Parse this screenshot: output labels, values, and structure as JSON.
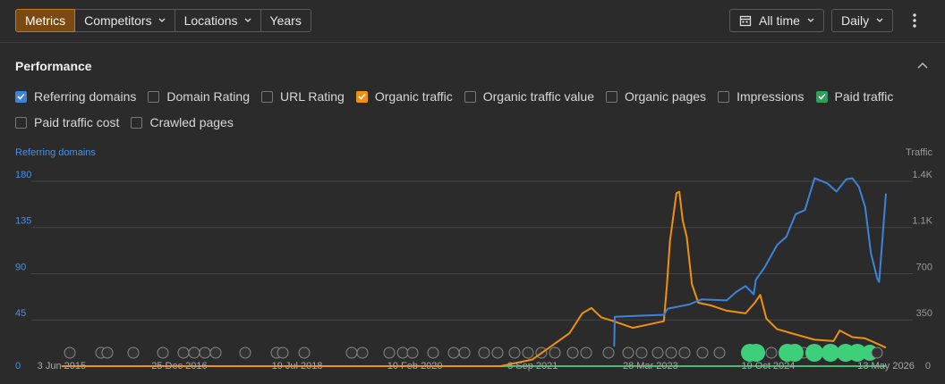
{
  "toolbar": {
    "tabs": [
      "Metrics",
      "Competitors",
      "Locations",
      "Years"
    ],
    "period": "All time",
    "interval": "Daily"
  },
  "section": {
    "title": "Performance",
    "checkboxes": [
      {
        "label": "Referring domains",
        "checked": true,
        "color": "#3d84d8"
      },
      {
        "label": "Domain Rating",
        "checked": false
      },
      {
        "label": "URL Rating",
        "checked": false
      },
      {
        "label": "Organic traffic",
        "checked": true,
        "color": "#f0900f"
      },
      {
        "label": "Organic traffic value",
        "checked": false
      },
      {
        "label": "Organic pages",
        "checked": false
      },
      {
        "label": "Impressions",
        "checked": false
      },
      {
        "label": "Paid traffic",
        "checked": true,
        "color": "#2f9e5c"
      },
      {
        "label": "Paid traffic cost",
        "checked": false
      },
      {
        "label": "Crawled pages",
        "checked": false
      }
    ]
  },
  "chart_data": {
    "type": "line",
    "y_label": "Referring domains",
    "y2_label": "Traffic",
    "xlim": [
      "2015-01-07",
      "2026-09-20"
    ],
    "xticks": [
      {
        "value": "2015-06-03",
        "label": "3 Jun 2015"
      },
      {
        "value": "2016-12-25",
        "label": "25 Dec 2016"
      },
      {
        "value": "2018-07-19",
        "label": "19 Jul 2018"
      },
      {
        "value": "2020-02-10",
        "label": "10 Feb 2020"
      },
      {
        "value": "2021-09-03",
        "label": "3 Sep 2021"
      },
      {
        "value": "2023-03-28",
        "label": "28 Mar 2023"
      },
      {
        "value": "2024-10-19",
        "label": "19 Oct 2024"
      },
      {
        "value": "2026-05-13",
        "label": "13 May 2026"
      }
    ],
    "ylim": [
      0,
      180
    ],
    "yticks": [
      0,
      45,
      90,
      135,
      180
    ],
    "y2lim": [
      0,
      1400
    ],
    "y2ticks": [
      0,
      350,
      700,
      {
        "value": 1050,
        "label": "1.1K"
      },
      {
        "value": 1400,
        "label": "1.4K"
      }
    ],
    "grid": true,
    "series": [
      {
        "name": "Paid traffic",
        "color": "#3fbf74",
        "axis": "y2",
        "x": [
          "2015-06-03",
          "2026-05-13"
        ],
        "values": [
          0,
          0
        ]
      },
      {
        "name": "Organic traffic",
        "color": "#f0900f",
        "axis": "y2",
        "x": [
          "2015-06-03",
          "2021-04-01",
          "2021-09-01",
          "2021-12-01",
          "2022-03-01",
          "2022-05-01",
          "2022-06-15",
          "2022-08-01",
          "2022-10-01",
          "2023-01-01",
          "2023-04-01",
          "2023-06-01",
          "2023-06-15",
          "2023-07-01",
          "2023-08-01",
          "2023-08-15",
          "2023-09-01",
          "2023-09-20",
          "2023-10-15",
          "2023-11-15",
          "2024-01-15",
          "2024-04-01",
          "2024-07-01",
          "2024-08-15",
          "2024-09-10",
          "2024-10-10",
          "2024-12-01",
          "2025-03-01",
          "2025-06-01",
          "2025-09-01",
          "2025-10-01",
          "2025-12-01",
          "2026-02-01",
          "2026-04-01",
          "2026-05-13"
        ],
        "values": [
          0,
          0,
          50,
          150,
          250,
          400,
          440,
          370,
          340,
          290,
          320,
          340,
          600,
          950,
          1310,
          1320,
          1100,
          980,
          620,
          480,
          460,
          420,
          400,
          480,
          540,
          360,
          280,
          240,
          200,
          190,
          270,
          220,
          210,
          170,
          140
        ]
      },
      {
        "name": "Referring domains",
        "color": "#3d84d8",
        "axis": "y",
        "x": [
          "2022-10-03",
          "2022-10-06",
          "2023-01-15",
          "2023-06-01",
          "2023-06-20",
          "2023-10-01",
          "2023-12-01",
          "2024-04-01",
          "2024-05-15",
          "2024-07-01",
          "2024-08-10",
          "2024-08-20",
          "2024-10-01",
          "2024-12-01",
          "2025-01-15",
          "2025-03-01",
          "2025-04-15",
          "2025-06-01",
          "2025-08-01",
          "2025-09-15",
          "2025-11-01",
          "2025-12-01",
          "2026-01-01",
          "2026-02-01",
          "2026-03-01",
          "2026-04-01",
          "2026-04-10",
          "2026-05-13"
        ],
        "values": [
          19,
          48,
          49,
          50,
          56,
          60,
          65,
          64,
          72,
          78,
          70,
          84,
          96,
          118,
          126,
          148,
          152,
          183,
          178,
          170,
          182,
          183,
          175,
          155,
          110,
          85,
          82,
          168
        ]
      }
    ]
  }
}
